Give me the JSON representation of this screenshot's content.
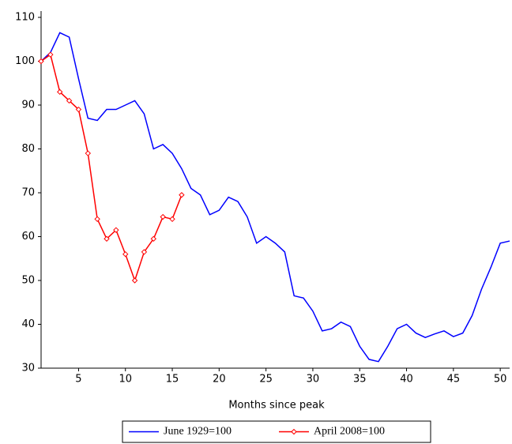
{
  "chart_data": {
    "type": "line",
    "x_label": "Months since peak",
    "x": [
      1,
      2,
      3,
      4,
      5,
      6,
      7,
      8,
      9,
      10,
      11,
      12,
      13,
      14,
      15,
      16,
      17,
      18,
      19,
      20,
      21,
      22,
      23,
      24,
      25,
      26,
      27,
      28,
      29,
      30,
      31,
      32,
      33,
      34,
      35,
      36,
      37,
      38,
      39,
      40,
      41,
      42,
      43,
      44,
      45,
      46,
      47,
      48,
      49,
      50,
      51
    ],
    "series": [
      {
        "name": "June 1929=100",
        "color": "#0000ff",
        "marker": "none",
        "values": [
          100,
          102,
          106.5,
          105.5,
          96,
          87,
          86.5,
          89,
          89,
          90,
          91,
          88,
          80,
          81,
          79,
          75.5,
          71,
          69.5,
          65,
          66,
          69,
          68,
          64.5,
          58.5,
          60,
          58.5,
          56.5,
          46.5,
          46,
          43,
          38.5,
          39,
          40.5,
          39.5,
          35,
          32,
          31.5,
          35,
          39,
          40,
          38,
          37,
          37.8,
          38.5,
          37.2,
          38,
          42,
          48,
          53,
          58.5,
          59
        ]
      },
      {
        "name": "April 2008=100",
        "color": "#ff0000",
        "marker": "diamond",
        "values": [
          100,
          101.5,
          93,
          91,
          89,
          79,
          64,
          59.5,
          61.5,
          56,
          50,
          56.5,
          59.5,
          64.5,
          64,
          69.5,
          null,
          null,
          null,
          null,
          null,
          null,
          null,
          null,
          null,
          null,
          null,
          null,
          null,
          null,
          null,
          null,
          null,
          null,
          null,
          null,
          null,
          null,
          null,
          null,
          null,
          null,
          null,
          null,
          null,
          null,
          null,
          null,
          null,
          null,
          null
        ]
      }
    ],
    "xlim": [
      1,
      51
    ],
    "xticks": [
      5,
      10,
      15,
      20,
      25,
      30,
      35,
      40,
      45,
      50
    ],
    "ylim": [
      30,
      110
    ],
    "yticks": [
      30,
      40,
      50,
      60,
      70,
      80,
      90,
      100,
      110
    ],
    "grid": false,
    "legend": "bottom"
  }
}
